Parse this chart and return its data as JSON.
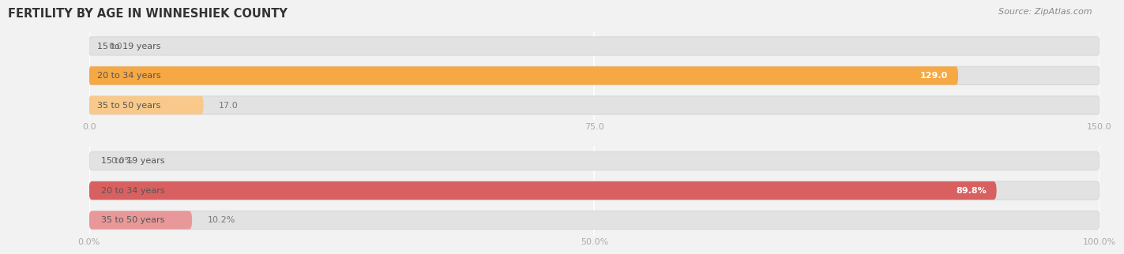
{
  "title": "FERTILITY BY AGE IN WINNESHIEK COUNTY",
  "source": "Source: ZipAtlas.com",
  "top_chart": {
    "categories": [
      "15 to 19 years",
      "20 to 34 years",
      "35 to 50 years"
    ],
    "values": [
      0.0,
      129.0,
      17.0
    ],
    "max_val": 150.0,
    "tick_vals": [
      0.0,
      75.0,
      150.0
    ],
    "tick_labels": [
      "0.0",
      "75.0",
      "150.0"
    ],
    "bar_color_main": "#F5A843",
    "bar_color_light": "#F8C98A",
    "bar_tiny_color": "#F8C98A"
  },
  "bottom_chart": {
    "categories": [
      "15 to 19 years",
      "20 to 34 years",
      "35 to 50 years"
    ],
    "values": [
      0.0,
      89.8,
      10.2
    ],
    "max_val": 100.0,
    "tick_vals": [
      0.0,
      50.0,
      100.0
    ],
    "tick_labels": [
      "0.0%",
      "50.0%",
      "100.0%"
    ],
    "bar_color_main": "#D96060",
    "bar_color_light": "#E89898",
    "bar_tiny_color": "#E89898"
  },
  "bg_color": "#f2f2f2",
  "bar_bg_color": "#e2e2e2",
  "bar_bg_edge": "#d8d8d8",
  "title_fontsize": 10.5,
  "source_fontsize": 8,
  "category_fontsize": 8,
  "value_fontsize": 8,
  "tick_fontsize": 8,
  "title_color": "#333333",
  "source_color": "#888888",
  "category_color": "#555555",
  "value_color_inside": "#ffffff",
  "value_color_outside": "#777777",
  "tick_color": "#aaaaaa",
  "grid_color": "#ffffff"
}
